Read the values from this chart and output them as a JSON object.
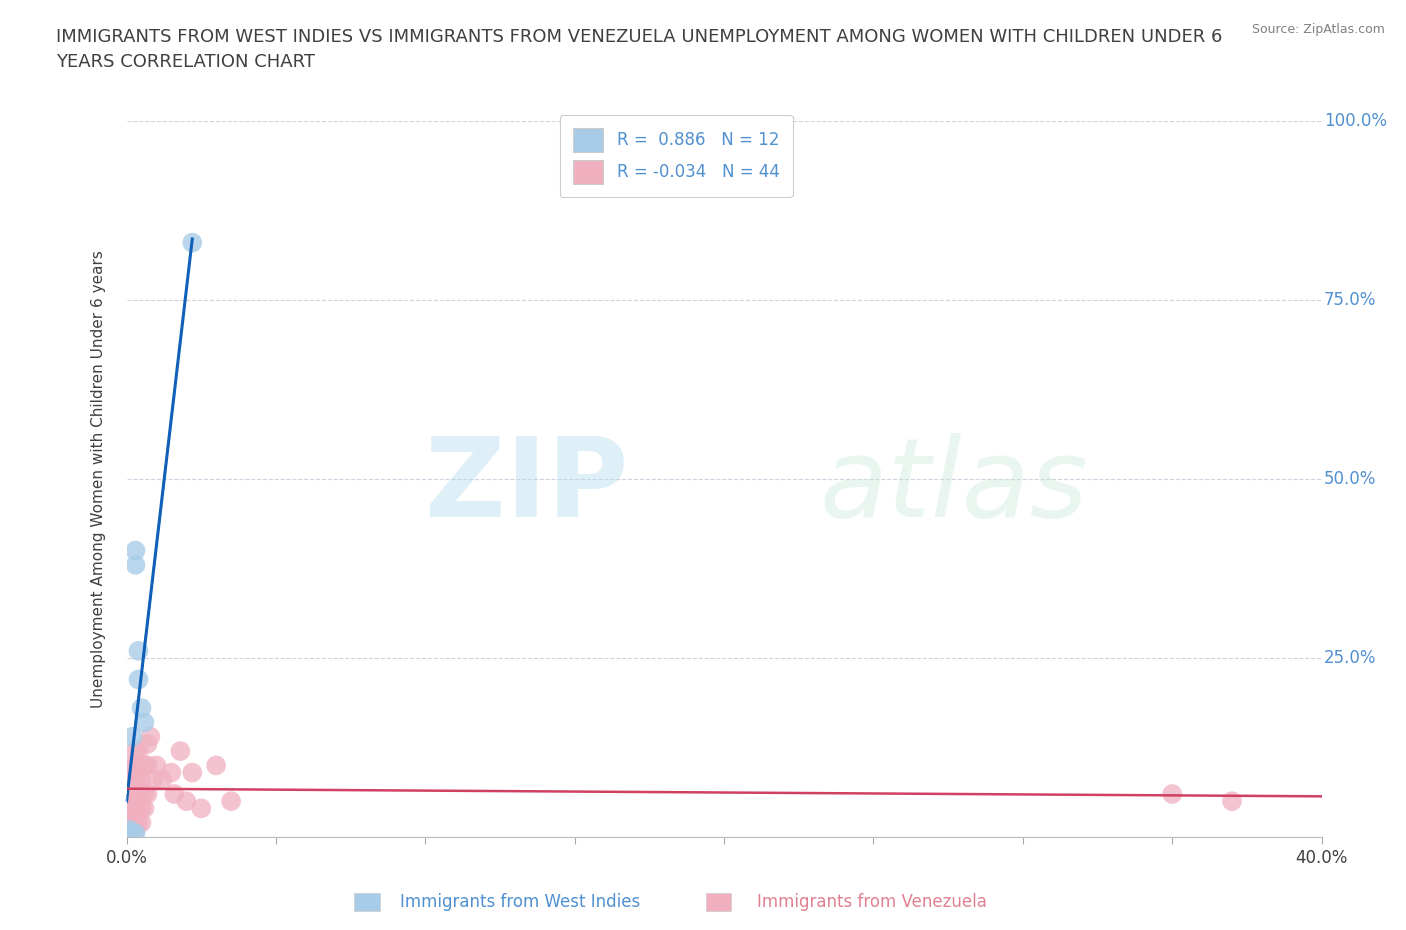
{
  "title": "IMMIGRANTS FROM WEST INDIES VS IMMIGRANTS FROM VENEZUELA UNEMPLOYMENT AMONG WOMEN WITH CHILDREN UNDER 6\nYEARS CORRELATION CHART",
  "source": "Source: ZipAtlas.com",
  "ylabel": "Unemployment Among Women with Children Under 6 years",
  "watermark_zip": "ZIP",
  "watermark_atlas": "atlas",
  "xlim": [
    0.0,
    0.4
  ],
  "ylim": [
    0.0,
    1.0
  ],
  "xticks": [
    0.0,
    0.05,
    0.1,
    0.15,
    0.2,
    0.25,
    0.3,
    0.35,
    0.4
  ],
  "yticks": [
    0.0,
    0.25,
    0.5,
    0.75,
    1.0
  ],
  "blue_color": "#a8cce8",
  "pink_color": "#f0b0c0",
  "blue_line_color": "#1060b8",
  "pink_line_color": "#d04060",
  "right_tick_color": "#5090d0",
  "blue_label_color": "#5090d0",
  "pink_label_color": "#e08090",
  "title_color": "#404040",
  "source_color": "#808080",
  "grid_color": "#d0d0e0",
  "blue_dots": [
    [
      0.001,
      0.005
    ],
    [
      0.001,
      0.01
    ],
    [
      0.002,
      0.005
    ],
    [
      0.002,
      0.14
    ],
    [
      0.003,
      0.005
    ],
    [
      0.003,
      0.38
    ],
    [
      0.003,
      0.4
    ],
    [
      0.004,
      0.22
    ],
    [
      0.004,
      0.26
    ],
    [
      0.005,
      0.18
    ],
    [
      0.006,
      0.16
    ],
    [
      0.022,
      0.83
    ]
  ],
  "pink_dots": [
    [
      0.001,
      0.04
    ],
    [
      0.001,
      0.02
    ],
    [
      0.002,
      0.1
    ],
    [
      0.002,
      0.08
    ],
    [
      0.002,
      0.05
    ],
    [
      0.002,
      0.04
    ],
    [
      0.002,
      0.03
    ],
    [
      0.002,
      0.02
    ],
    [
      0.003,
      0.12
    ],
    [
      0.003,
      0.1
    ],
    [
      0.003,
      0.08
    ],
    [
      0.003,
      0.06
    ],
    [
      0.003,
      0.04
    ],
    [
      0.003,
      0.02
    ],
    [
      0.003,
      0.01
    ],
    [
      0.004,
      0.12
    ],
    [
      0.004,
      0.09
    ],
    [
      0.004,
      0.06
    ],
    [
      0.004,
      0.04
    ],
    [
      0.004,
      0.02
    ],
    [
      0.005,
      0.08
    ],
    [
      0.005,
      0.06
    ],
    [
      0.005,
      0.04
    ],
    [
      0.005,
      0.02
    ],
    [
      0.006,
      0.1
    ],
    [
      0.006,
      0.06
    ],
    [
      0.006,
      0.04
    ],
    [
      0.007,
      0.13
    ],
    [
      0.007,
      0.1
    ],
    [
      0.007,
      0.06
    ],
    [
      0.008,
      0.14
    ],
    [
      0.009,
      0.08
    ],
    [
      0.01,
      0.1
    ],
    [
      0.012,
      0.08
    ],
    [
      0.015,
      0.09
    ],
    [
      0.016,
      0.06
    ],
    [
      0.018,
      0.12
    ],
    [
      0.02,
      0.05
    ],
    [
      0.022,
      0.09
    ],
    [
      0.025,
      0.04
    ],
    [
      0.03,
      0.1
    ],
    [
      0.035,
      0.05
    ],
    [
      0.35,
      0.06
    ],
    [
      0.37,
      0.05
    ]
  ],
  "background_color": "#ffffff"
}
